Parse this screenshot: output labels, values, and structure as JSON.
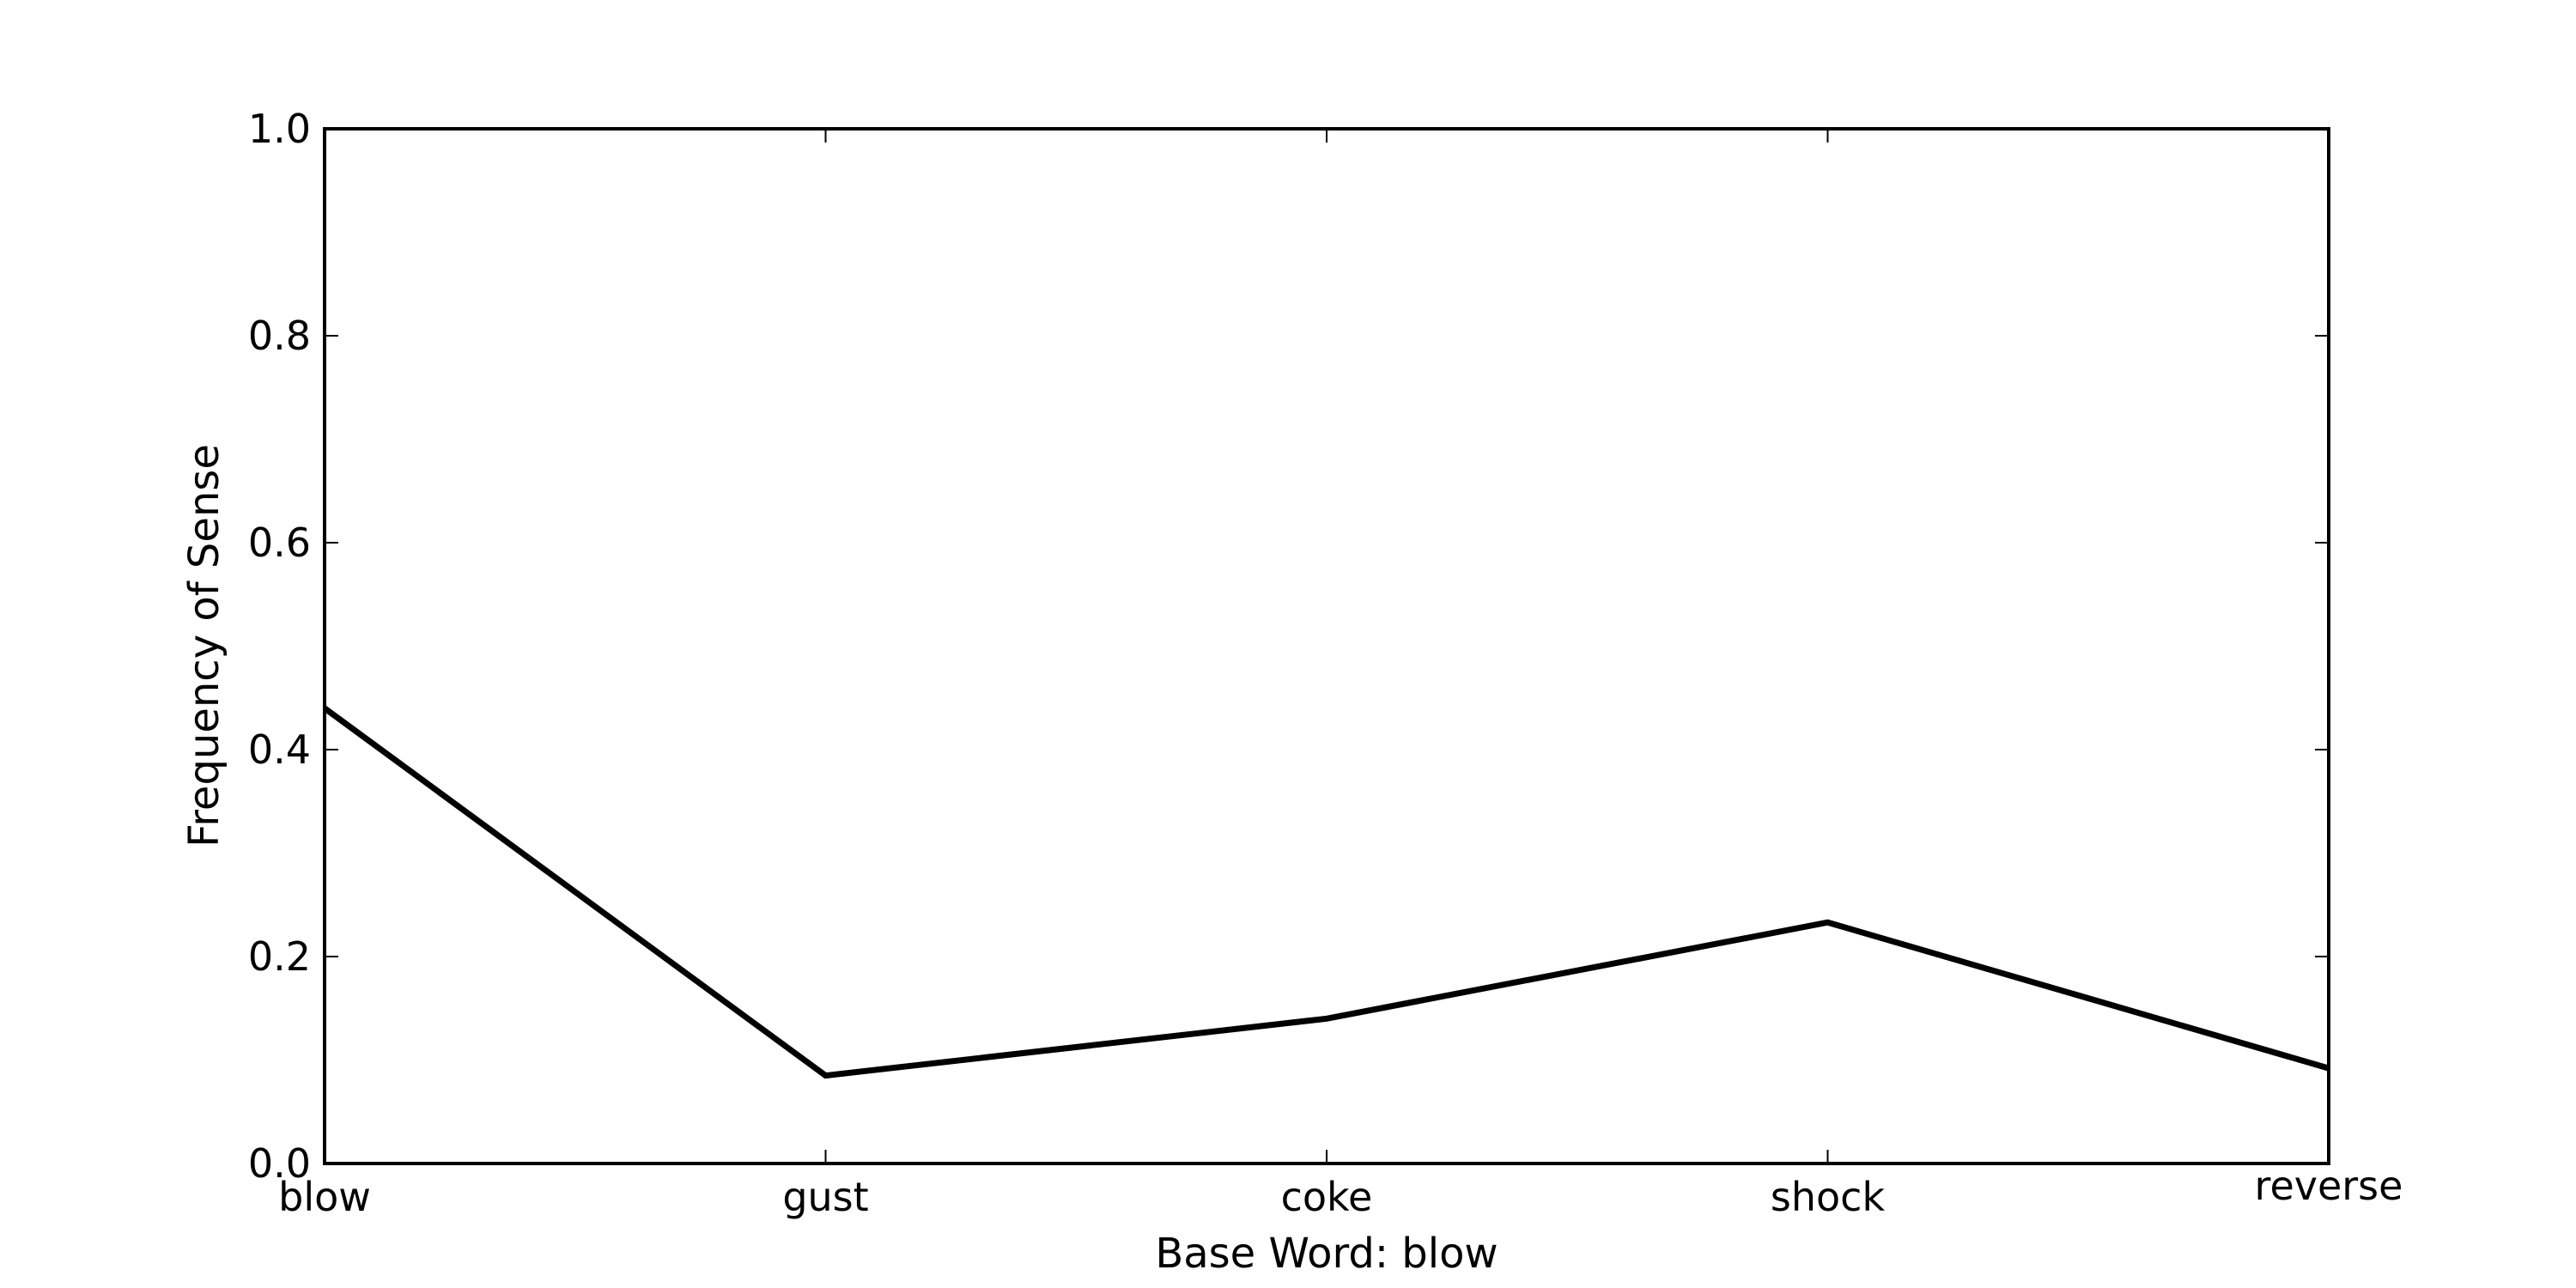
{
  "chart_data": {
    "type": "line",
    "categories": [
      "blow",
      "gust",
      "coke",
      "shock",
      "reverse"
    ],
    "series": [
      {
        "values": [
          0.44,
          0.085,
          0.14,
          0.233,
          0.092
        ]
      }
    ],
    "xlabel": "Base Word: blow",
    "ylabel": "Frequency of Sense",
    "ylim": [
      0,
      1
    ],
    "yticks": [
      "0.0",
      "0.2",
      "0.4",
      "0.6",
      "0.8",
      "1.0"
    ],
    "grid": false,
    "line_color": "#000000"
  }
}
